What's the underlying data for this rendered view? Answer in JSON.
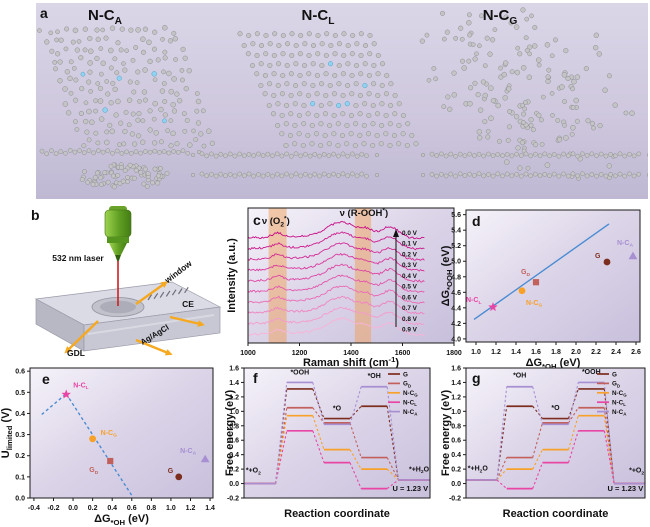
{
  "panel_letters": {
    "a": "a",
    "b": "b",
    "c": "c",
    "d": "d",
    "e": "e",
    "f": "f",
    "g": "g"
  },
  "panel_a": {
    "structures": [
      {
        "title": [
          {
            "t": "N-C"
          },
          {
            "t": "A",
            "sub": true
          }
        ],
        "type": "amorphous",
        "n_blue_atoms": 5
      },
      {
        "title": [
          {
            "t": "N-C"
          },
          {
            "t": "L",
            "sub": true
          }
        ],
        "type": "crystalline",
        "n_blue_atoms": 5
      },
      {
        "title": [
          {
            "t": "N-C"
          },
          {
            "t": "G",
            "sub": true
          }
        ],
        "type": "crystalline",
        "n_blue_atoms": 5
      }
    ],
    "atom_colors": {
      "carbon": "#c4c4c6",
      "carbon_stroke": "#8d8d90",
      "nitrogen": "#8fd3f0",
      "nitrogen_stroke": "#55a0c8"
    }
  },
  "panel_b": {
    "labels": {
      "laser": "532 nm laser",
      "window": "window",
      "ce": "CE",
      "reference": "Ag/AgCl",
      "gdl": "GDL"
    },
    "colors": {
      "arrow": "#f6a81f",
      "laser_beam": "#cc2020",
      "objective": "#6fae2a",
      "text": "#111111"
    }
  },
  "chart_data": [
    {
      "id": "c",
      "type": "line",
      "subtype": "raman_spectra",
      "title": "",
      "xlabel": [
        {
          "t": "Raman shift (cm"
        },
        {
          "t": "-1",
          "sup": true
        },
        {
          "t": ")"
        }
      ],
      "ylabel": [
        {
          "t": "Intensity (a.u.)"
        }
      ],
      "xlim": [
        1000,
        1800
      ],
      "xticks": [
        "1000",
        "1200",
        "1400",
        "1600",
        "1800"
      ],
      "grid": false,
      "series": [
        {
          "name": "0.0 V",
          "color": "#c70c85"
        },
        {
          "name": "0.1 V",
          "color": "#cd1a8d"
        },
        {
          "name": "0.2 V",
          "color": "#d32894"
        },
        {
          "name": "0.3 V",
          "color": "#d9369c"
        },
        {
          "name": "0.4 V",
          "color": "#de45a3"
        },
        {
          "name": "0.5 V",
          "color": "#e356ab"
        },
        {
          "name": "0.6 V",
          "color": "#e96bb5"
        },
        {
          "name": "0.7 V",
          "color": "#ef83c1"
        },
        {
          "name": "0.8 V",
          "color": "#f49bcd"
        },
        {
          "name": "0.9 V",
          "color": "#f8b3d8"
        }
      ],
      "peak_labels": [
        {
          "segs": [
            {
              "t": "ν (O"
            },
            {
              "t": "2",
              "sub": true
            },
            {
              "t": "*",
              "sup": true
            },
            {
              "t": ")"
            }
          ],
          "x": 1108
        },
        {
          "segs": [
            {
              "t": "ν (R-OOH"
            },
            {
              "t": "*",
              "sup": true
            },
            {
              "t": ")"
            }
          ],
          "x": 1450
        }
      ],
      "highlight_bands": [
        [
          1080,
          1150
        ],
        [
          1415,
          1478
        ]
      ],
      "band_color": "#f0a05a",
      "peaks": {
        "d_band": 1365,
        "g_band": 1550,
        "o2_peak": 1115,
        "rooh_peak": 1462
      }
    },
    {
      "id": "d",
      "type": "scatter",
      "xlabel": [
        {
          "t": "ΔG"
        },
        {
          "t": "*OH",
          "sub": true
        },
        {
          "t": " (eV)"
        }
      ],
      "ylabel": [
        {
          "t": "ΔG"
        },
        {
          "t": "*OOH",
          "sub": true
        },
        {
          "t": " (eV)"
        }
      ],
      "xlim": [
        0.9,
        2.64
      ],
      "ylim": [
        3.96,
        5.66
      ],
      "xticks": [
        "1.0",
        "1.2",
        "1.4",
        "1.6",
        "1.8",
        "2.0",
        "2.2",
        "2.4",
        "2.6"
      ],
      "yticks": [
        "4.0",
        "4.2",
        "4.4",
        "4.6",
        "4.8",
        "5.0",
        "5.2",
        "5.4",
        "5.6"
      ],
      "scaling_line": {
        "x1": 0.98,
        "y1": 4.25,
        "x2": 2.33,
        "y2": 5.48,
        "color": "#4a8cd3"
      },
      "points": [
        {
          "name": "N-C_L",
          "segs": [
            {
              "t": "N-C"
            },
            {
              "t": "L",
              "sub": true
            }
          ],
          "x": 1.17,
          "y": 4.41,
          "marker": "star",
          "color": "#e945a5",
          "lx": -27,
          "ly": -5
        },
        {
          "name": "N-C_G",
          "segs": [
            {
              "t": "N-C"
            },
            {
              "t": "G",
              "sub": true
            }
          ],
          "x": 1.46,
          "y": 4.62,
          "marker": "circle",
          "color": "#f8a128",
          "lx": 4,
          "ly": 14
        },
        {
          "name": "G_D",
          "segs": [
            {
              "t": "G"
            },
            {
              "t": "D",
              "sub": true
            }
          ],
          "x": 1.6,
          "y": 4.73,
          "marker": "square",
          "color": "#c2605c",
          "lx": -15,
          "ly": -8
        },
        {
          "name": "G",
          "segs": [
            {
              "t": "G"
            }
          ],
          "x": 2.31,
          "y": 4.99,
          "marker": "circle",
          "color": "#7d2d1e",
          "lx": -12,
          "ly": -4
        },
        {
          "name": "N-C_A",
          "segs": [
            {
              "t": "N-C"
            },
            {
              "t": "A",
              "sub": true
            }
          ],
          "x": 2.57,
          "y": 5.07,
          "marker": "triangle",
          "color": "#a78fd2",
          "lx": -16,
          "ly": -11
        }
      ]
    },
    {
      "id": "e",
      "type": "scatter",
      "xlabel": [
        {
          "t": "ΔG"
        },
        {
          "t": "*OH",
          "sub": true
        },
        {
          "t": " (eV)"
        }
      ],
      "ylabel": [
        {
          "t": "U"
        },
        {
          "t": "limited",
          "sub": true
        },
        {
          "t": " (V)"
        }
      ],
      "xlim": [
        -0.44,
        1.43
      ],
      "ylim": [
        0,
        0.615
      ],
      "xticks": [
        "-0.4",
        "-0.2",
        "0.0",
        "0.2",
        "0.4",
        "0.6",
        "0.8",
        "1.0",
        "1.2",
        "1.4"
      ],
      "yticks": [
        "0.0",
        "0.1",
        "0.2",
        "0.3",
        "0.4",
        "0.5",
        "0.6"
      ],
      "volcano_lines": [
        {
          "x1": -0.32,
          "y1": 0.395,
          "x2": -0.07,
          "y2": 0.493,
          "color": "#4a8cd3"
        },
        {
          "x1": -0.07,
          "y1": 0.493,
          "x2": 0.61,
          "y2": 0.005,
          "color": "#4a8cd3"
        }
      ],
      "points": [
        {
          "name": "N-C_L",
          "segs": [
            {
              "t": "N-C"
            },
            {
              "t": "L",
              "sub": true
            }
          ],
          "x": -0.07,
          "y": 0.49,
          "marker": "star",
          "color": "#e945a5",
          "lx": 7,
          "ly": -7
        },
        {
          "name": "N-C_G",
          "segs": [
            {
              "t": "N-C"
            },
            {
              "t": "G",
              "sub": true
            }
          ],
          "x": 0.2,
          "y": 0.28,
          "marker": "circle",
          "color": "#f8a128",
          "lx": 8,
          "ly": -4
        },
        {
          "name": "G_D",
          "segs": [
            {
              "t": "G"
            },
            {
              "t": "D",
              "sub": true
            }
          ],
          "x": 0.38,
          "y": 0.175,
          "marker": "square",
          "color": "#c2605c",
          "lx": -21,
          "ly": 11
        },
        {
          "name": "G",
          "segs": [
            {
              "t": "G"
            }
          ],
          "x": 1.08,
          "y": 0.1,
          "marker": "circle",
          "color": "#7d2d1e",
          "lx": -11,
          "ly": -4
        },
        {
          "name": "N-C_A",
          "segs": [
            {
              "t": "N-C"
            },
            {
              "t": "A",
              "sub": true
            }
          ],
          "x": 1.35,
          "y": 0.185,
          "marker": "triangle",
          "color": "#a78fd2",
          "lx": -25,
          "ly": -6
        }
      ]
    },
    {
      "id": "f",
      "type": "line",
      "subtype": "free_energy_steps",
      "xlabel": [
        {
          "t": "Reaction coordinate"
        }
      ],
      "ylabel": [
        {
          "t": "Free energy (eV)"
        }
      ],
      "ylim": [
        -0.2,
        1.6
      ],
      "yticks": [
        "-0.2",
        "0.0",
        "0.2",
        "0.4",
        "0.6",
        "0.8",
        "1.0",
        "1.2",
        "1.4",
        "1.6"
      ],
      "states": [
        "*+O₂",
        "*OOH",
        "*O",
        "*OH",
        "*+H₂O"
      ],
      "potential": "U = 1.23 V",
      "series": [
        {
          "name": "G",
          "segs": [
            {
              "t": "G"
            }
          ],
          "color": "#7d2d1e",
          "values": [
            0,
            1.31,
            0.9,
            1.07,
            0.05
          ]
        },
        {
          "name": "G_D",
          "segs": [
            {
              "t": "G"
            },
            {
              "t": "D",
              "sub": true
            }
          ],
          "color": "#c2605c",
          "values": [
            0,
            1.05,
            0.84,
            0.36,
            0.05
          ]
        },
        {
          "name": "N-C_G",
          "segs": [
            {
              "t": "N-C"
            },
            {
              "t": "G",
              "sub": true
            }
          ],
          "color": "#f8a128",
          "values": [
            0,
            0.94,
            0.47,
            0.2,
            0.05
          ]
        },
        {
          "name": "N-C_L",
          "segs": [
            {
              "t": "N-C"
            },
            {
              "t": "L",
              "sub": true
            }
          ],
          "color": "#e945a5",
          "values": [
            0,
            0.73,
            0.29,
            -0.07,
            0.05
          ]
        },
        {
          "name": "N-C_A",
          "segs": [
            {
              "t": "N-C"
            },
            {
              "t": "A",
              "sub": true
            }
          ],
          "color": "#a78fd2",
          "values": [
            0,
            1.4,
            0.82,
            1.34,
            0.05
          ]
        }
      ],
      "annotations": [
        {
          "segs": [
            {
              "t": "*OOH"
            }
          ],
          "xf": 0.3,
          "yv": 1.51,
          "anchor": "middle"
        },
        {
          "segs": [
            {
              "t": "*O"
            }
          ],
          "xf": 0.5,
          "yv": 1.01,
          "anchor": "middle"
        },
        {
          "segs": [
            {
              "t": "*OH"
            }
          ],
          "xf": 0.7,
          "yv": 1.46,
          "anchor": "middle"
        },
        {
          "segs": [
            {
              "t": "*+O"
            },
            {
              "t": "2",
              "sub": true
            }
          ],
          "xf": 0.01,
          "yv": 0.15,
          "anchor": "start"
        },
        {
          "segs": [
            {
              "t": "*+H"
            },
            {
              "t": "2",
              "sub": true
            },
            {
              "t": "O"
            }
          ],
          "xf": 0.995,
          "yv": 0.17,
          "anchor": "end"
        },
        {
          "segs": [
            {
              "t": "U = 1.23 V"
            }
          ],
          "xf": 0.99,
          "yv": -0.1,
          "anchor": "end"
        }
      ],
      "legend_labels": [
        "G",
        "G_D",
        "N-C_G",
        "N-C_L",
        "N-C_A"
      ]
    },
    {
      "id": "g",
      "type": "line",
      "subtype": "free_energy_steps",
      "xlabel": [
        {
          "t": "Reaction coordinate"
        }
      ],
      "ylabel": [
        {
          "t": "Free energy (eV)"
        }
      ],
      "ylim": [
        -0.2,
        1.6
      ],
      "yticks": [
        "-0.2",
        "0.0",
        "0.2",
        "0.4",
        "0.6",
        "0.8",
        "1.0",
        "1.2",
        "1.4",
        "1.6"
      ],
      "states": [
        "*+H₂O",
        "*OH",
        "*O",
        "*OOH",
        "*+O₂"
      ],
      "potential": "U = 1.23 V",
      "series": [
        {
          "name": "G",
          "segs": [
            {
              "t": "G"
            }
          ],
          "color": "#7d2d1e",
          "values": [
            0.05,
            1.07,
            0.9,
            1.31,
            0
          ]
        },
        {
          "name": "G_D",
          "segs": [
            {
              "t": "G"
            },
            {
              "t": "D",
              "sub": true
            }
          ],
          "color": "#c2605c",
          "values": [
            0.05,
            0.36,
            0.84,
            1.05,
            0
          ]
        },
        {
          "name": "N-C_G",
          "segs": [
            {
              "t": "N-C"
            },
            {
              "t": "G",
              "sub": true
            }
          ],
          "color": "#f8a128",
          "values": [
            0.05,
            0.2,
            0.47,
            0.94,
            0
          ]
        },
        {
          "name": "N-C_L",
          "segs": [
            {
              "t": "N-C"
            },
            {
              "t": "L",
              "sub": true
            }
          ],
          "color": "#e945a5",
          "values": [
            0.05,
            -0.07,
            0.29,
            0.73,
            0
          ]
        },
        {
          "name": "N-C_A",
          "segs": [
            {
              "t": "N-C"
            },
            {
              "t": "A",
              "sub": true
            }
          ],
          "color": "#a78fd2",
          "values": [
            0.05,
            1.34,
            0.82,
            1.4,
            0
          ]
        }
      ],
      "annotations": [
        {
          "segs": [
            {
              "t": "*OH"
            }
          ],
          "xf": 0.3,
          "yv": 1.47,
          "anchor": "middle"
        },
        {
          "segs": [
            {
              "t": "*O"
            }
          ],
          "xf": 0.5,
          "yv": 1.02,
          "anchor": "middle"
        },
        {
          "segs": [
            {
              "t": "*OOH"
            }
          ],
          "xf": 0.7,
          "yv": 1.52,
          "anchor": "middle"
        },
        {
          "segs": [
            {
              "t": "*+H"
            },
            {
              "t": "2",
              "sub": true
            },
            {
              "t": "O"
            }
          ],
          "xf": 0.01,
          "yv": 0.18,
          "anchor": "start"
        },
        {
          "segs": [
            {
              "t": "*+O"
            },
            {
              "t": "2",
              "sub": true
            }
          ],
          "xf": 0.995,
          "yv": 0.15,
          "anchor": "end"
        },
        {
          "segs": [
            {
              "t": "U = 1.23 V"
            }
          ],
          "xf": 0.99,
          "yv": -0.1,
          "anchor": "end"
        }
      ],
      "legend_labels": [
        "G",
        "G_D",
        "N-C_G",
        "N-C_L",
        "N-C_A"
      ]
    }
  ]
}
